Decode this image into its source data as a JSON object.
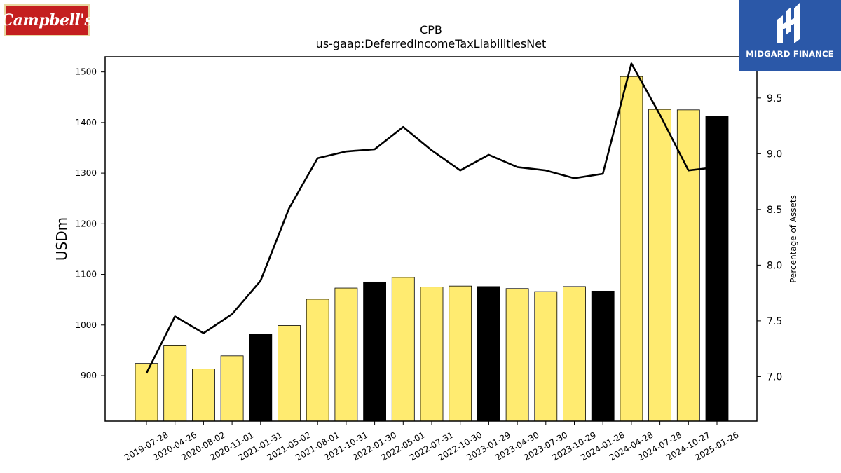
{
  "logos": {
    "left": "Campbell's",
    "right": "MIDGARD FINANCE"
  },
  "chart_data": {
    "type": "bar",
    "title": "CPB",
    "subtitle": "us-gaap:DeferredIncomeTaxLiabilitiesNet",
    "ylabel": "USDm",
    "y2label": "Percentage of Assets",
    "ylim": [
      810,
      1530
    ],
    "y2lim": [
      6.6,
      9.87
    ],
    "yticks": [
      900,
      1000,
      1100,
      1200,
      1300,
      1400,
      1500
    ],
    "y2ticks": [
      "7.0",
      "7.5",
      "8.0",
      "8.5",
      "9.0",
      "9.5"
    ],
    "categories": [
      "2019-07-28",
      "2020-04-26",
      "2020-08-02",
      "2020-11-01",
      "2021-01-31",
      "2021-05-02",
      "2021-08-01",
      "2021-10-31",
      "2022-01-30",
      "2022-05-01",
      "2022-07-31",
      "2022-10-30",
      "2023-01-29",
      "2023-04-30",
      "2023-07-30",
      "2023-10-29",
      "2024-01-28",
      "2024-04-28",
      "2024-07-28",
      "2024-10-27",
      "2025-01-26"
    ],
    "series": [
      {
        "kind": "bar",
        "axis": "left",
        "values": [
          924,
          959,
          913,
          939,
          982,
          999,
          1051,
          1073,
          1085,
          1094,
          1075,
          1077,
          1076,
          1072,
          1066,
          1076,
          1067,
          1491,
          1426,
          1425,
          1412
        ],
        "colors": [
          "#ffeb70",
          "#ffeb70",
          "#ffeb70",
          "#ffeb70",
          "#000000",
          "#ffeb70",
          "#ffeb70",
          "#ffeb70",
          "#000000",
          "#ffeb70",
          "#ffeb70",
          "#ffeb70",
          "#000000",
          "#ffeb70",
          "#ffeb70",
          "#ffeb70",
          "#000000",
          "#ffeb70",
          "#ffeb70",
          "#ffeb70",
          "#000000"
        ]
      },
      {
        "kind": "line",
        "axis": "right",
        "color": "#000000",
        "values": [
          7.03,
          7.54,
          7.39,
          7.56,
          7.86,
          8.51,
          8.96,
          9.02,
          9.04,
          9.24,
          9.03,
          8.85,
          8.99,
          8.88,
          8.85,
          8.78,
          8.82,
          9.81,
          9.35,
          8.85,
          8.88
        ]
      }
    ],
    "grid": false,
    "legend": "none"
  }
}
